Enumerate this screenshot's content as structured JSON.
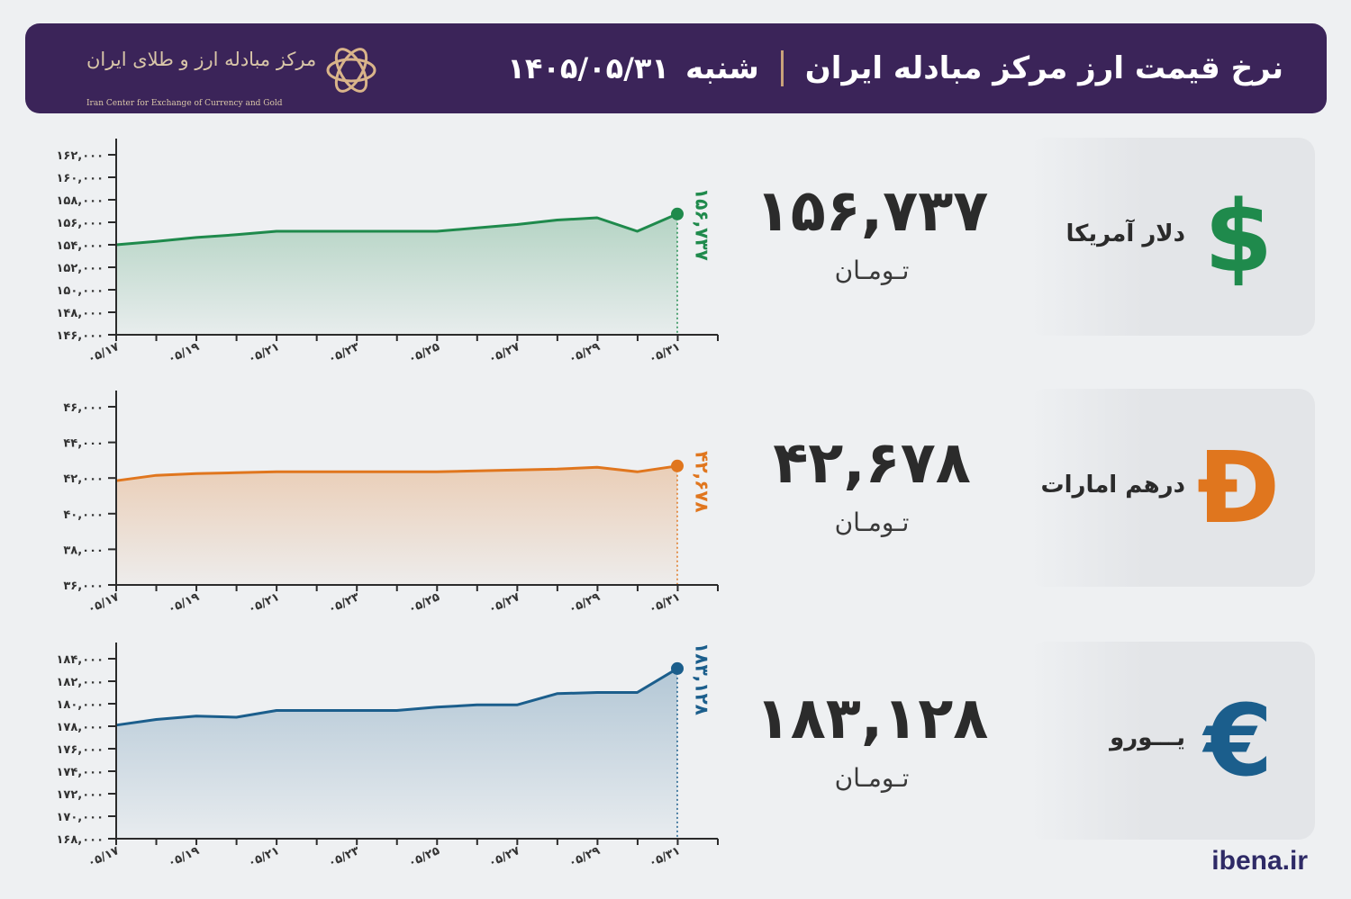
{
  "header": {
    "title": "نرخ قیمت ارز مرکز مبادله ایران",
    "day": "شنبه",
    "date": "۱۴۰۵/۰۵/۳۱",
    "logo_name": "مرکز مبادله ارز و طلای ایران",
    "logo_subtitle": "Iran Center for Exchange of Currency and Gold"
  },
  "brand": "ibena.ir",
  "colors": {
    "header_bg": "#3b2459",
    "usd": "#1f8a4c",
    "aed": "#e0761e",
    "eur": "#1b5e8c"
  },
  "cards": [
    {
      "label": "دلار آمریکا",
      "icon": "dollar-sign-icon",
      "symbol": "$",
      "price": "۱۵۶,۷۳۷",
      "unit": "تـومـان"
    },
    {
      "label": "درهم امارات",
      "icon": "dirham-sign-icon",
      "symbol": "Đ",
      "price": "۴۲,۶۷۸",
      "unit": "تـومـان"
    },
    {
      "label": "یـــورو",
      "icon": "euro-sign-icon",
      "symbol": "€",
      "price": "۱۸۳,۱۲۸",
      "unit": "تـومـان"
    }
  ],
  "chart_data": [
    {
      "type": "area",
      "series_name": "",
      "color": "#1f8a4c",
      "x": [
        "۰۵/۱۷",
        "۰۵/۱۸",
        "۰۵/۱۹",
        "۰۵/۲۰",
        "۰۵/۲۱",
        "۰۵/۲۲",
        "۰۵/۲۳",
        "۰۵/۲۴",
        "۰۵/۲۵",
        "۰۵/۲۶",
        "۰۵/۲۷",
        "۰۵/۲۸",
        "۰۵/۲۹",
        "۰۵/۳۰",
        "۰۵/۳۱"
      ],
      "x_tick_labels": [
        "۰۵/۱۷",
        "۰۵/۱۹",
        "۰۵/۲۱",
        "۰۵/۲۳",
        "۰۵/۲۵",
        "۰۵/۲۷",
        "۰۵/۲۹",
        "۰۵/۳۱"
      ],
      "values": [
        154000,
        154300,
        154650,
        154900,
        155200,
        155200,
        155200,
        155200,
        155200,
        155500,
        155800,
        156200,
        156400,
        155200,
        156737
      ],
      "ylim": [
        146000,
        162000
      ],
      "y_ticks": [
        146000,
        148000,
        150000,
        152000,
        154000,
        156000,
        158000,
        160000,
        162000
      ],
      "y_tick_labels": [
        "۱۴۶,۰۰۰",
        "۱۴۸,۰۰۰",
        "۱۵۰,۰۰۰",
        "۱۵۲,۰۰۰",
        "۱۵۴,۰۰۰",
        "۱۵۶,۰۰۰",
        "۱۵۸,۰۰۰",
        "۱۶۰,۰۰۰",
        "۱۶۲,۰۰۰"
      ],
      "last_label": "۱۵۶,۷۳۷",
      "title": "",
      "xlabel": "",
      "ylabel": "",
      "grid": false
    },
    {
      "type": "area",
      "series_name": "",
      "color": "#e0761e",
      "x": [
        "۰۵/۱۷",
        "۰۵/۱۸",
        "۰۵/۱۹",
        "۰۵/۲۰",
        "۰۵/۲۱",
        "۰۵/۲۲",
        "۰۵/۲۳",
        "۰۵/۲۴",
        "۰۵/۲۵",
        "۰۵/۲۶",
        "۰۵/۲۷",
        "۰۵/۲۸",
        "۰۵/۲۹",
        "۰۵/۳۰",
        "۰۵/۳۱"
      ],
      "x_tick_labels": [
        "۰۵/۱۷",
        "۰۵/۱۹",
        "۰۵/۲۱",
        "۰۵/۲۳",
        "۰۵/۲۵",
        "۰۵/۲۷",
        "۰۵/۲۹",
        "۰۵/۳۱"
      ],
      "values": [
        41850,
        42150,
        42250,
        42300,
        42350,
        42350,
        42350,
        42350,
        42350,
        42400,
        42450,
        42500,
        42600,
        42350,
        42678
      ],
      "ylim": [
        36000,
        46000
      ],
      "y_ticks": [
        36000,
        38000,
        40000,
        42000,
        44000,
        46000
      ],
      "y_tick_labels": [
        "۳۶,۰۰۰",
        "۳۸,۰۰۰",
        "۴۰,۰۰۰",
        "۴۲,۰۰۰",
        "۴۴,۰۰۰",
        "۴۶,۰۰۰"
      ],
      "last_label": "۴۲,۶۷۸",
      "title": "",
      "xlabel": "",
      "ylabel": "",
      "grid": false
    },
    {
      "type": "area",
      "series_name": "",
      "color": "#1b5e8c",
      "x": [
        "۰۵/۱۷",
        "۰۵/۱۸",
        "۰۵/۱۹",
        "۰۵/۲۰",
        "۰۵/۲۱",
        "۰۵/۲۲",
        "۰۵/۲۳",
        "۰۵/۲۴",
        "۰۵/۲۵",
        "۰۵/۲۶",
        "۰۵/۲۷",
        "۰۵/۲۸",
        "۰۵/۲۹",
        "۰۵/۳۰",
        "۰۵/۳۱"
      ],
      "x_tick_labels": [
        "۰۵/۱۷",
        "۰۵/۱۹",
        "۰۵/۲۱",
        "۰۵/۲۳",
        "۰۵/۲۵",
        "۰۵/۲۷",
        "۰۵/۲۹",
        "۰۵/۳۱"
      ],
      "values": [
        178100,
        178600,
        178900,
        178800,
        179400,
        179400,
        179400,
        179400,
        179700,
        179900,
        179900,
        180900,
        181000,
        181000,
        183128
      ],
      "ylim": [
        168000,
        184000
      ],
      "y_ticks": [
        168000,
        170000,
        172000,
        174000,
        176000,
        178000,
        180000,
        182000,
        184000
      ],
      "y_tick_labels": [
        "۱۶۸,۰۰۰",
        "۱۷۰,۰۰۰",
        "۱۷۲,۰۰۰",
        "۱۷۴,۰۰۰",
        "۱۷۶,۰۰۰",
        "۱۷۸,۰۰۰",
        "۱۸۰,۰۰۰",
        "۱۸۲,۰۰۰",
        "۱۸۴,۰۰۰"
      ],
      "last_label": "۱۸۳,۱۲۸",
      "title": "",
      "xlabel": "",
      "ylabel": "",
      "grid": false
    }
  ]
}
